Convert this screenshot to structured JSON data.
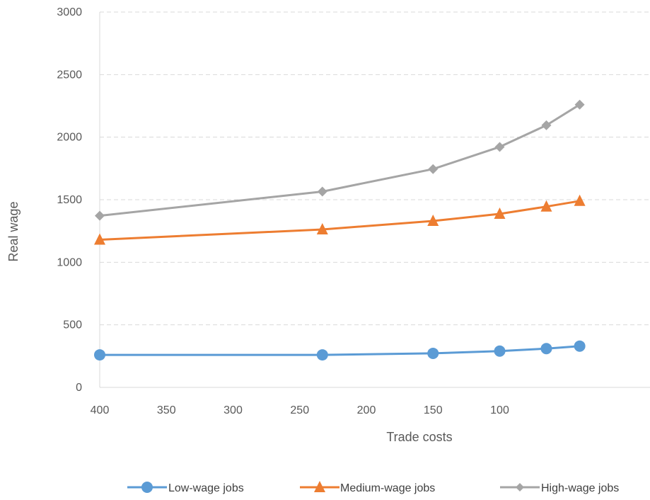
{
  "chart_data": {
    "type": "line",
    "title": "",
    "xlabel": "Trade costs",
    "ylabel": "Real wage",
    "xlim": [
      400,
      40
    ],
    "ylim": [
      0,
      3000
    ],
    "x_reversed": true,
    "xticks": [
      400,
      350,
      300,
      250,
      200,
      150,
      100
    ],
    "yticks": [
      0,
      500,
      1000,
      1500,
      2000,
      2500,
      3000
    ],
    "grid": "horizontal-dashed",
    "legend_position": "bottom",
    "series": [
      {
        "name": "Low-wage jobs",
        "color": "#5B9BD5",
        "marker": "circle",
        "x": [
          400,
          233,
          150,
          100,
          65,
          40
        ],
        "y": [
          260,
          260,
          272,
          290,
          310,
          330
        ]
      },
      {
        "name": "Medium-wage jobs",
        "color": "#ED7D31",
        "marker": "triangle",
        "x": [
          400,
          233,
          150,
          100,
          65,
          40
        ],
        "y": [
          1180,
          1262,
          1330,
          1387,
          1445,
          1490
        ]
      },
      {
        "name": "High-wage jobs",
        "color": "#A5A5A5",
        "marker": "diamond",
        "x": [
          400,
          233,
          150,
          100,
          65,
          40
        ],
        "y": [
          1372,
          1565,
          1745,
          1922,
          2095,
          2260
        ]
      }
    ]
  }
}
